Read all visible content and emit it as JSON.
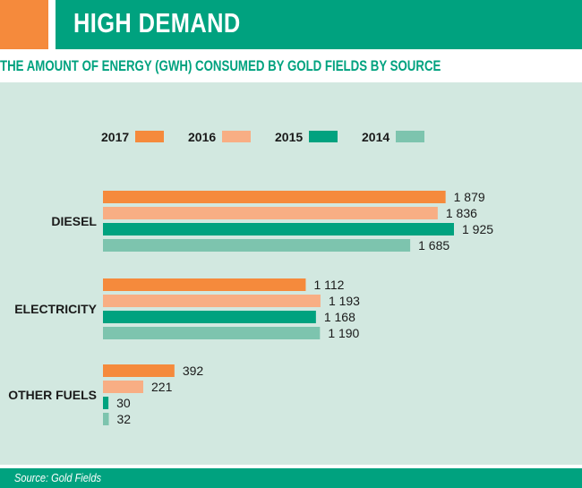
{
  "header": {
    "title": "HIGH DEMAND",
    "subtitle": "THE AMOUNT OF ENERGY (GWH) CONSUMED BY GOLD FIELDS BY SOURCE"
  },
  "footer": {
    "source": "Source: Gold Fields"
  },
  "colors": {
    "2017": "#f58a3c",
    "2016": "#f8ae84",
    "2015": "#00a27f",
    "2014": "#7dc4ae",
    "panel": "#d2e8e0"
  },
  "chart_data": {
    "type": "bar",
    "orientation": "horizontal",
    "title": "THE AMOUNT OF ENERGY (GWH) CONSUMED BY GOLD FIELDS BY SOURCE",
    "categories": [
      "DIESEL",
      "ELECTRICITY",
      "OTHER FUELS"
    ],
    "legend_position": "top-left",
    "grid": false,
    "xlim": [
      0,
      1925
    ],
    "series": [
      {
        "name": "2017",
        "values": [
          1879,
          1112,
          392
        ],
        "labels": [
          "1 879",
          "1 112",
          "392"
        ]
      },
      {
        "name": "2016",
        "values": [
          1836,
          1193,
          221
        ],
        "labels": [
          "1 836",
          "1 193",
          "221"
        ]
      },
      {
        "name": "2015",
        "values": [
          1925,
          1168,
          30
        ],
        "labels": [
          "1 925",
          "1 168",
          "30"
        ]
      },
      {
        "name": "2014",
        "values": [
          1685,
          1190,
          32
        ],
        "labels": [
          "1 685",
          "1 190",
          "32"
        ]
      }
    ]
  }
}
